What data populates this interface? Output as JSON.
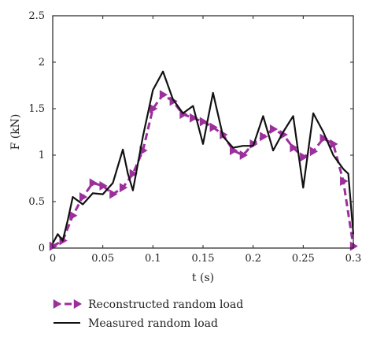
{
  "chart_data": {
    "type": "line",
    "xlabel": "t (s)",
    "ylabel": "F (kN)",
    "xlim": [
      0,
      0.3
    ],
    "ylim": [
      0,
      2.5
    ],
    "xticks": [
      "0",
      "0.05",
      "0.1",
      "0.15",
      "0.2",
      "0.25",
      "0.3"
    ],
    "yticks": [
      "0",
      "0.5",
      "1",
      "1.5",
      "2",
      "2.5"
    ],
    "grid": false,
    "legend_position": "bottom",
    "series": [
      {
        "name": "Reconstructed random load",
        "color": "#9b2f9b",
        "style": "dashed",
        "marker": "triangle-right",
        "x": [
          0,
          0.01,
          0.02,
          0.03,
          0.04,
          0.05,
          0.06,
          0.07,
          0.08,
          0.09,
          0.1,
          0.11,
          0.12,
          0.13,
          0.14,
          0.15,
          0.16,
          0.17,
          0.18,
          0.19,
          0.2,
          0.21,
          0.22,
          0.23,
          0.24,
          0.25,
          0.26,
          0.27,
          0.28,
          0.29,
          0.3
        ],
        "y": [
          0.02,
          0.08,
          0.35,
          0.55,
          0.7,
          0.67,
          0.58,
          0.65,
          0.8,
          1.05,
          1.5,
          1.65,
          1.58,
          1.44,
          1.4,
          1.36,
          1.3,
          1.22,
          1.05,
          1.0,
          1.12,
          1.2,
          1.28,
          1.22,
          1.08,
          0.98,
          1.04,
          1.18,
          1.12,
          0.72,
          0.02
        ]
      },
      {
        "name": "Measured random load",
        "color": "#111111",
        "style": "solid",
        "marker": "none",
        "x": [
          0,
          0.005,
          0.01,
          0.015,
          0.02,
          0.03,
          0.04,
          0.05,
          0.06,
          0.07,
          0.075,
          0.08,
          0.09,
          0.1,
          0.11,
          0.12,
          0.13,
          0.14,
          0.15,
          0.16,
          0.17,
          0.18,
          0.19,
          0.2,
          0.21,
          0.22,
          0.23,
          0.24,
          0.25,
          0.26,
          0.27,
          0.28,
          0.29,
          0.295,
          0.3
        ],
        "y": [
          0.05,
          0.15,
          0.08,
          0.3,
          0.55,
          0.47,
          0.59,
          0.58,
          0.7,
          1.06,
          0.8,
          0.62,
          1.2,
          1.7,
          1.9,
          1.6,
          1.45,
          1.53,
          1.12,
          1.67,
          1.2,
          1.08,
          1.1,
          1.1,
          1.42,
          1.05,
          1.25,
          1.42,
          0.65,
          1.45,
          1.25,
          1.0,
          0.85,
          0.8,
          0.15
        ]
      }
    ]
  }
}
